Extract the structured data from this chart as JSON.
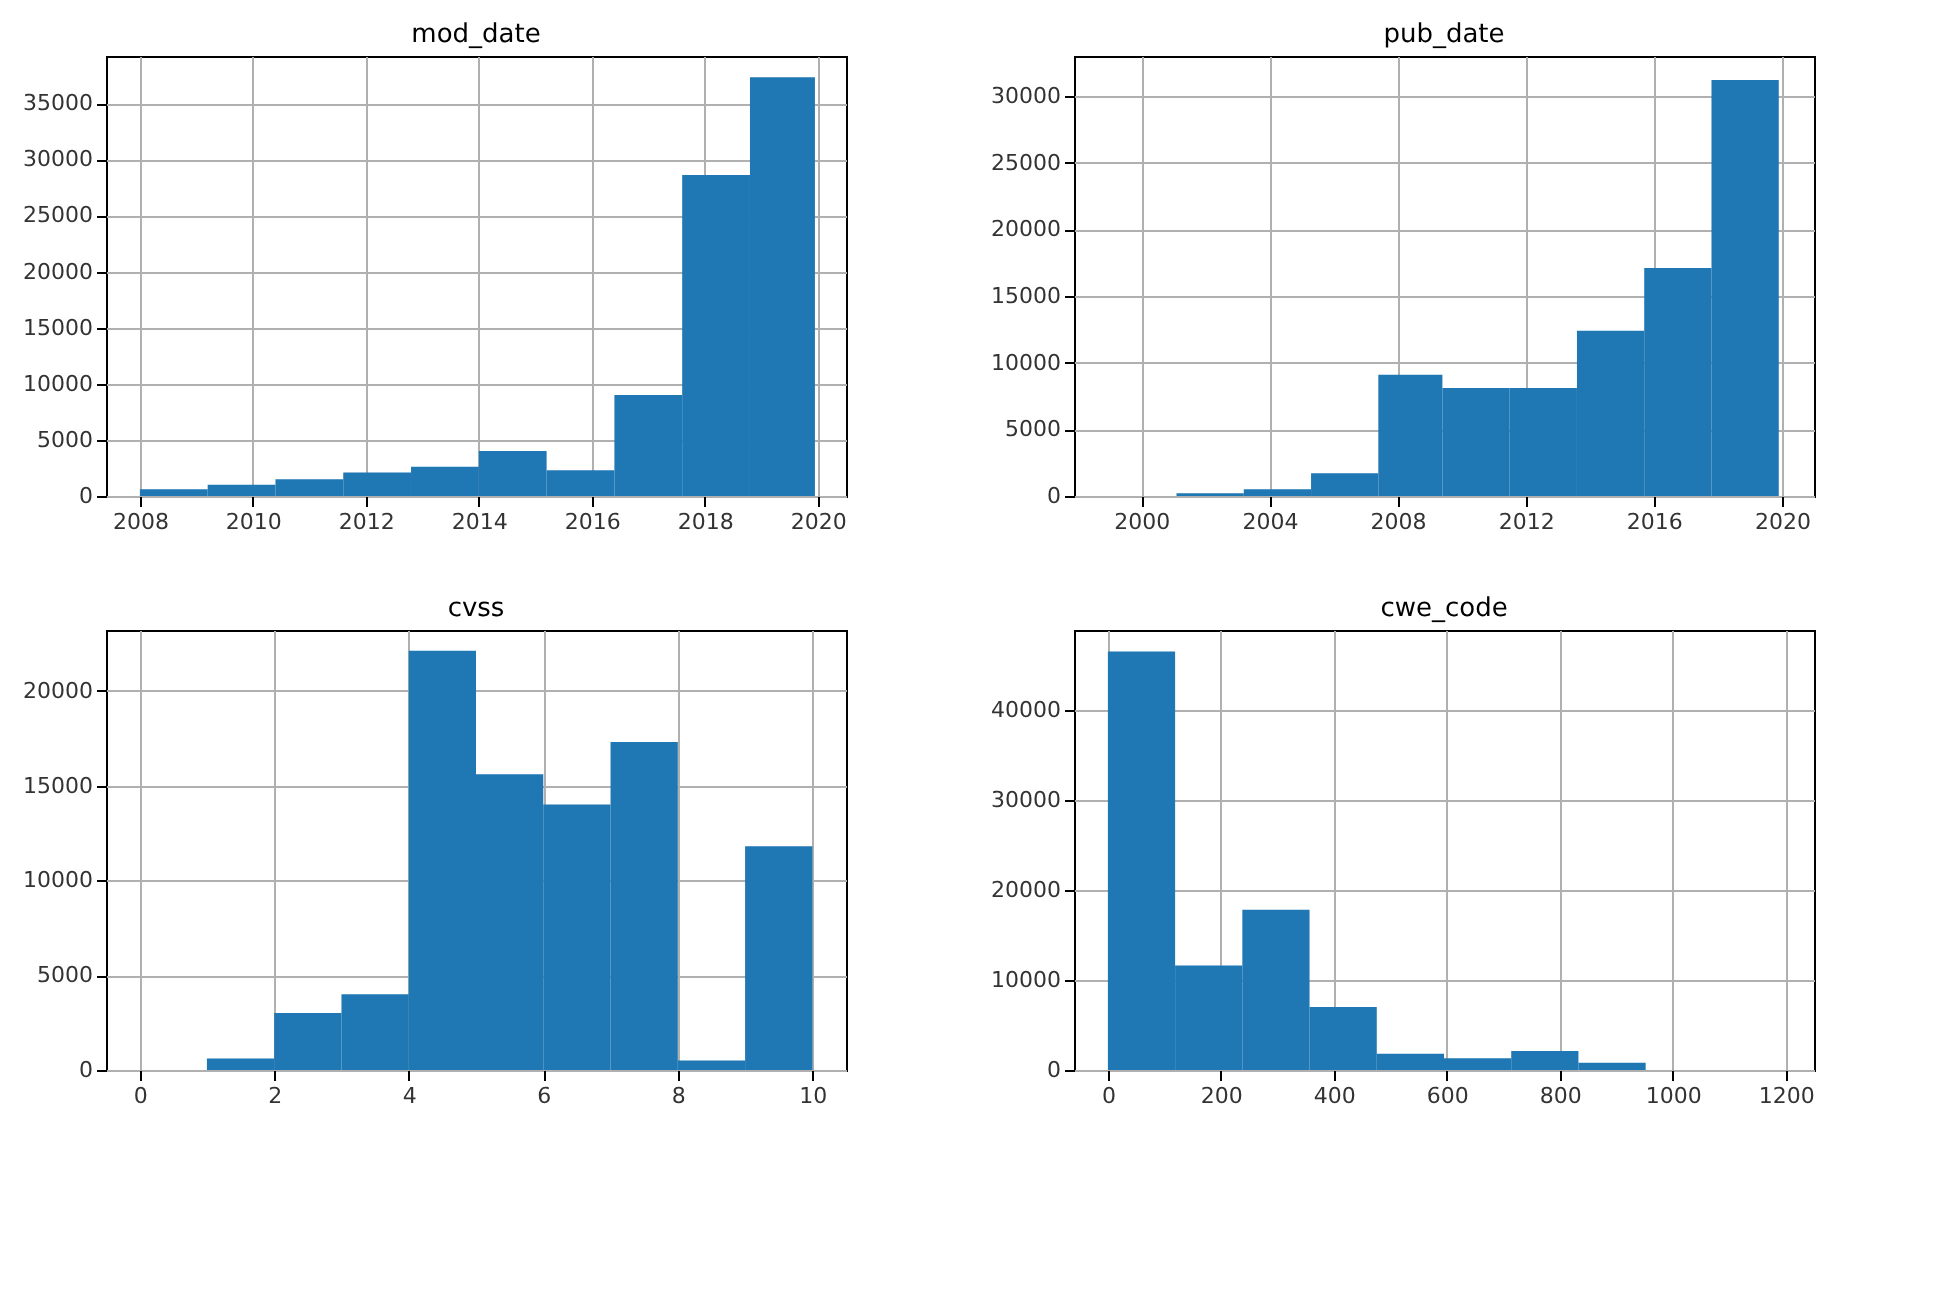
{
  "chart_data": [
    {
      "type": "histogram",
      "title": "mod_date",
      "color": "#1f77b4",
      "grid": true,
      "bins": [
        2008,
        2009.2,
        2010.4,
        2011.6,
        2012.8,
        2014.0,
        2015.2,
        2016.4,
        2017.6,
        2018.8,
        2019.95
      ],
      "values": [
        600,
        1000,
        1500,
        2100,
        2600,
        4000,
        2300,
        9000,
        28600,
        37300
      ],
      "xlim": [
        2007.4,
        2020.5
      ],
      "xticks": [
        2008,
        2010,
        2012,
        2014,
        2016,
        2018,
        2020
      ],
      "ylim": [
        0,
        39200
      ],
      "yticks": [
        0,
        5000,
        10000,
        15000,
        20000,
        25000,
        30000,
        35000
      ]
    },
    {
      "type": "histogram",
      "title": "pub_date",
      "color": "#1f77b4",
      "grid": true,
      "bins": [
        2001.1,
        2003.2,
        2005.3,
        2007.4,
        2009.4,
        2011.5,
        2013.6,
        2015.7,
        2017.8,
        2019.9
      ],
      "values": [
        200,
        500,
        1700,
        9100,
        8100,
        8100,
        12400,
        17100,
        31200
      ],
      "xlim": [
        1997.9,
        2021.0
      ],
      "xticks": [
        2000,
        2004,
        2008,
        2012,
        2016,
        2020
      ],
      "ylim": [
        0,
        33000
      ],
      "yticks": [
        0,
        5000,
        10000,
        15000,
        20000,
        25000,
        30000
      ]
    },
    {
      "type": "histogram",
      "title": "cvss",
      "color": "#1f77b4",
      "grid": true,
      "bins": [
        0,
        1,
        2,
        3,
        4,
        5,
        6,
        7,
        8,
        9,
        10
      ],
      "values": [
        0,
        600,
        3000,
        4000,
        22100,
        15600,
        14000,
        17300,
        500,
        11800
      ],
      "xlim": [
        -0.5,
        10.5
      ],
      "xticks": [
        0,
        2,
        4,
        6,
        8,
        10
      ],
      "ylim": [
        0,
        23200
      ],
      "yticks": [
        0,
        5000,
        10000,
        15000,
        20000
      ]
    },
    {
      "type": "histogram",
      "title": "cwe_code",
      "color": "#1f77b4",
      "grid": true,
      "bins": [
        0,
        119,
        238,
        357,
        476,
        595,
        714,
        833,
        952,
        1071,
        1190
      ],
      "values": [
        46500,
        11600,
        17800,
        7000,
        1800,
        1300,
        2100,
        800,
        0,
        0
      ],
      "xlim": [
        -60,
        1250
      ],
      "xticks": [
        0,
        200,
        400,
        600,
        800,
        1000,
        1200
      ],
      "ylim": [
        0,
        48900
      ],
      "yticks": [
        0,
        10000,
        20000,
        30000,
        40000
      ]
    }
  ]
}
